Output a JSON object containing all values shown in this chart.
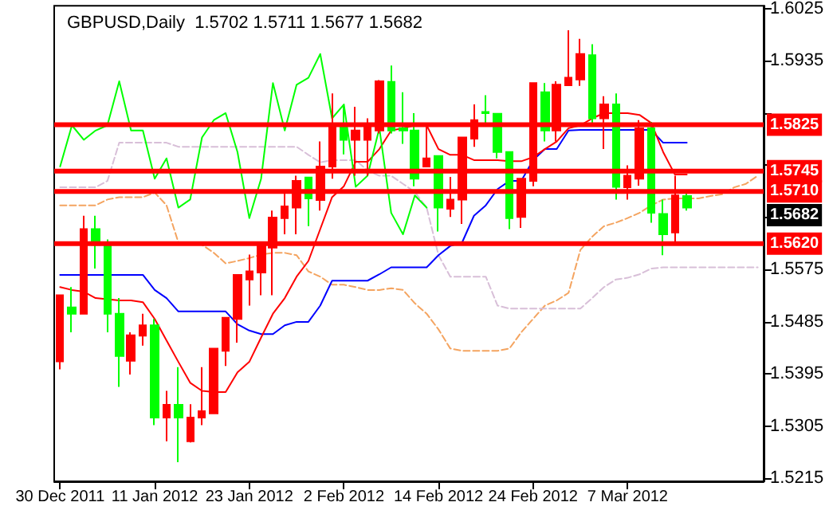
{
  "chart_data": {
    "type": "candlestick",
    "title": "GBPUSD,Daily  1.5702 1.5711 1.5677 1.5682",
    "categories": [
      "30 Dec 2011",
      null,
      null,
      null,
      null,
      null,
      null,
      null,
      "11 Jan 2012",
      null,
      null,
      null,
      null,
      null,
      null,
      null,
      "23 Jan 2012",
      null,
      null,
      null,
      null,
      null,
      null,
      null,
      "2 Feb 2012",
      null,
      null,
      null,
      null,
      null,
      null,
      null,
      "14 Feb 2012",
      null,
      null,
      null,
      null,
      null,
      null,
      null,
      "24 Feb 2012",
      null,
      null,
      null,
      null,
      null,
      null,
      null,
      "7 Mar 2012",
      null,
      null,
      null,
      null,
      null,
      null,
      null,
      null,
      null,
      null,
      null
    ],
    "ohlc": [
      [
        1.5417,
        1.5531,
        1.5403,
        1.5531
      ],
      [
        1.551,
        1.5545,
        1.5467,
        1.5499
      ],
      [
        1.5499,
        1.5668,
        1.5499,
        1.5645
      ],
      [
        1.5645,
        1.5668,
        1.5577,
        1.5618
      ],
      [
        1.5618,
        1.5627,
        1.5467,
        1.5499
      ],
      [
        1.5499,
        1.5526,
        1.5373,
        1.5426
      ],
      [
        1.5418,
        1.5467,
        1.5394,
        1.5462
      ],
      [
        1.5461,
        1.5499,
        1.5444,
        1.5479
      ],
      [
        1.5479,
        1.549,
        1.5307,
        1.532
      ],
      [
        1.532,
        1.5366,
        1.5279,
        1.5342
      ],
      [
        1.5342,
        1.5407,
        1.5243,
        1.532
      ],
      [
        1.5279,
        1.5343,
        1.5277,
        1.532
      ],
      [
        1.532,
        1.5407,
        1.5307,
        1.5331
      ],
      [
        1.5327,
        1.5439,
        1.5327,
        1.5439
      ],
      [
        1.5435,
        1.5492,
        1.5409,
        1.5492
      ],
      [
        1.549,
        1.5566,
        1.5449,
        1.5566
      ],
      [
        1.5558,
        1.5601,
        1.5513,
        1.5572
      ],
      [
        1.557,
        1.5616,
        1.5531,
        1.5616
      ],
      [
        1.5613,
        1.5677,
        1.5531,
        1.5665
      ],
      [
        1.5664,
        1.5709,
        1.5636,
        1.5684
      ],
      [
        1.5682,
        1.5737,
        1.5636,
        1.5728
      ],
      [
        1.5734,
        1.5734,
        1.565,
        1.5698
      ],
      [
        1.5695,
        1.5796,
        1.5677,
        1.5753
      ],
      [
        1.5753,
        1.5879,
        1.5732,
        1.5824
      ],
      [
        1.5824,
        1.586,
        1.5774,
        1.5799
      ],
      [
        1.5799,
        1.5856,
        1.5737,
        1.5815
      ],
      [
        1.5799,
        1.5836,
        1.5737,
        1.5824
      ],
      [
        1.5815,
        1.5902,
        1.581,
        1.59
      ],
      [
        1.5899,
        1.5927,
        1.581,
        1.5815
      ],
      [
        1.5819,
        1.5881,
        1.5792,
        1.5815
      ],
      [
        1.5815,
        1.5845,
        1.5719,
        1.5732
      ],
      [
        1.5753,
        1.5824,
        1.5753,
        1.5767
      ],
      [
        1.5771,
        1.5771,
        1.5641,
        1.5682
      ],
      [
        1.568,
        1.5735,
        1.5666,
        1.5696
      ],
      [
        1.5696,
        1.5803,
        1.5654,
        1.5803
      ],
      [
        1.5801,
        1.586,
        1.5787,
        1.5833
      ],
      [
        1.5847,
        1.5876,
        1.5824,
        1.5845
      ],
      [
        1.5844,
        1.5844,
        1.5767,
        1.5778
      ],
      [
        1.5778,
        1.5778,
        1.5645,
        1.5664
      ],
      [
        1.5666,
        1.5732,
        1.5647,
        1.5732
      ],
      [
        1.5728,
        1.5897,
        1.5719,
        1.5897
      ],
      [
        1.5881,
        1.5897,
        1.5796,
        1.5815
      ],
      [
        1.5815,
        1.59,
        1.5796,
        1.5894
      ],
      [
        1.5893,
        1.5988,
        1.5893,
        1.5906
      ],
      [
        1.5903,
        1.5973,
        1.5892,
        1.5947
      ],
      [
        1.5945,
        1.5964,
        1.5824,
        1.5836
      ],
      [
        1.5836,
        1.5874,
        1.5783,
        1.586
      ],
      [
        1.586,
        1.5879,
        1.5696,
        1.5718
      ],
      [
        1.5717,
        1.5755,
        1.5696,
        1.5737
      ],
      [
        1.5732,
        1.5833,
        1.572,
        1.5819
      ],
      [
        1.5819,
        1.583,
        1.5656,
        1.5673
      ],
      [
        1.5671,
        1.5696,
        1.56,
        1.5636
      ],
      [
        1.5639,
        1.5737,
        1.5618,
        1.5703
      ],
      [
        1.5702,
        1.5711,
        1.5677,
        1.5682
      ],
      null,
      null,
      null,
      null,
      null,
      null
    ],
    "colors": [
      "#ff0000",
      "#00ff00",
      "#ff0000",
      "#00ff00",
      "#00ff00",
      "#00ff00",
      "#ff0000",
      "#ff0000",
      "#00ff00",
      "#ff0000",
      "#00ff00",
      "#ff0000",
      "#ff0000",
      "#ff0000",
      "#ff0000",
      "#ff0000",
      "#ff0000",
      "#ff0000",
      "#ff0000",
      "#ff0000",
      "#ff0000",
      "#00ff00",
      "#ff0000",
      "#ff0000",
      "#00ff00",
      "#ff0000",
      "#ff0000",
      "#ff0000",
      "#00ff00",
      "#00ff00",
      "#00ff00",
      "#ff0000",
      "#00ff00",
      "#ff0000",
      "#ff0000",
      "#ff0000",
      "#00ff00",
      "#00ff00",
      "#00ff00",
      "#ff0000",
      "#ff0000",
      "#00ff00",
      "#ff0000",
      "#ff0000",
      "#ff0000",
      "#00ff00",
      "#ff0000",
      "#00ff00",
      "#ff0000",
      "#ff0000",
      "#00ff00",
      "#00ff00",
      "#ff0000",
      "#00ff00",
      null,
      null,
      null,
      null,
      null,
      null
    ],
    "series": [
      {
        "type": "line",
        "color": "#f4a460",
        "line_style": "dashed",
        "values": [
          1.5686,
          1.5686,
          1.5686,
          1.5686,
          1.5696,
          1.57,
          1.57,
          1.57,
          1.5708,
          1.5686,
          1.5622,
          1.562,
          1.5618,
          1.5604,
          1.5586,
          1.559,
          1.5595,
          1.5601,
          1.5604,
          1.5604,
          1.56,
          1.5572,
          1.5563,
          1.5549,
          1.5549,
          1.5545,
          1.554,
          1.554,
          1.5543,
          1.554,
          1.5517,
          1.5499,
          1.5472,
          1.5439,
          1.5435,
          1.5435,
          1.5435,
          1.5435,
          1.5439,
          1.5467,
          1.549,
          1.5513,
          1.5522,
          1.5535,
          1.5609,
          1.5632,
          1.565,
          1.5656,
          1.5664,
          1.5673,
          1.5686,
          1.5696,
          1.5698,
          1.5698,
          1.5698,
          1.5702,
          1.5705,
          1.5717,
          1.5723,
          1.5737
        ]
      },
      {
        "type": "line",
        "color": "#d8bfd8",
        "line_style": "dashed",
        "values": [
          1.5717,
          1.5717,
          1.5717,
          1.5717,
          1.5728,
          1.5794,
          1.5794,
          1.5794,
          1.5794,
          1.5794,
          1.5787,
          1.5787,
          1.5787,
          1.5787,
          1.5787,
          1.5787,
          1.5787,
          1.5787,
          1.5787,
          1.5787,
          1.5787,
          1.5773,
          1.576,
          1.5764,
          1.5764,
          1.5764,
          1.5746,
          1.5737,
          1.5737,
          1.5723,
          1.5709,
          1.5682,
          1.56,
          1.5563,
          1.5563,
          1.5563,
          1.5563,
          1.5513,
          1.5508,
          1.5508,
          1.5508,
          1.5508,
          1.5508,
          1.5508,
          1.5508,
          1.5526,
          1.5545,
          1.5558,
          1.5561,
          1.5567,
          1.5577,
          1.5579,
          1.5579,
          1.5579,
          1.5579,
          1.5579,
          1.5579,
          1.5579,
          1.5579,
          1.5579
        ]
      },
      {
        "type": "line",
        "color": "#0000ff",
        "line_style": "solid",
        "values": [
          1.5566,
          1.5566,
          1.5566,
          1.5566,
          1.5566,
          1.5566,
          1.5566,
          1.5566,
          1.554,
          1.5526,
          1.5503,
          1.5503,
          1.5503,
          1.5503,
          1.5503,
          1.5481,
          1.547,
          1.5464,
          1.5464,
          1.5479,
          1.5485,
          1.5485,
          1.5513,
          1.5556,
          1.5556,
          1.5556,
          1.5556,
          1.5567,
          1.5579,
          1.5579,
          1.5579,
          1.5579,
          1.56,
          1.5616,
          1.5622,
          1.5668,
          1.5686,
          1.5714,
          1.5728,
          1.5728,
          1.5764,
          1.5783,
          1.5783,
          1.5815,
          1.5816,
          1.5816,
          1.5816,
          1.5816,
          1.5816,
          1.5816,
          1.5816,
          1.5794,
          1.5794,
          1.5794,
          null,
          null,
          null,
          null,
          null,
          null
        ]
      },
      {
        "type": "line",
        "color": "#ff0000",
        "line_style": "solid",
        "values": [
          1.5545,
          1.554,
          1.5537,
          1.5526,
          1.5524,
          1.5522,
          1.5522,
          1.5519,
          1.549,
          1.5453,
          1.5416,
          1.538,
          1.5366,
          1.5364,
          1.5364,
          1.5398,
          1.5416,
          1.5458,
          1.5499,
          1.5526,
          1.5563,
          1.559,
          1.5645,
          1.57,
          1.5719,
          1.5761,
          1.5761,
          1.5783,
          1.5815,
          1.5819,
          1.5824,
          1.5824,
          1.5783,
          1.5773,
          1.5773,
          1.5764,
          1.5764,
          1.5764,
          1.5762,
          1.5762,
          1.5769,
          1.5783,
          1.5796,
          1.5819,
          1.5824,
          1.5836,
          1.5845,
          1.5845,
          1.5845,
          1.5842,
          1.5828,
          1.5778,
          1.5739,
          1.5739,
          null,
          null,
          null,
          null,
          null,
          null
        ]
      },
      {
        "type": "line",
        "color": "#00ff00",
        "line_style": "solid",
        "values": [
          1.5753,
          1.5824,
          1.5799,
          1.5815,
          1.5824,
          1.59,
          1.5815,
          1.5815,
          1.5732,
          1.5767,
          1.5682,
          1.5696,
          1.5803,
          1.5833,
          1.5845,
          1.5778,
          1.5664,
          1.5732,
          1.5897,
          1.5815,
          1.5894,
          1.5906,
          1.5947,
          1.5836,
          1.586,
          1.5718,
          1.5737,
          1.5819,
          1.5673,
          1.5636,
          1.5703,
          1.5682,
          null,
          null,
          null,
          null,
          null,
          null,
          null,
          null,
          null,
          null,
          null,
          null,
          null,
          null,
          null,
          null,
          null,
          null,
          null,
          null,
          null,
          null,
          null,
          null,
          null,
          null,
          null,
          null
        ]
      }
    ],
    "ylim": [
      1.521,
      1.603
    ],
    "yticks": [
      1.5215,
      1.5305,
      1.5395,
      1.5485,
      1.5575,
      {
        "value": 1.5665,
        "label": null
      },
      {
        "value": 1.5755,
        "label": null
      },
      {
        "value": 1.5845,
        "label": null
      },
      1.5935,
      1.6025
    ],
    "ref_lines": [
      {
        "axis": "y",
        "value": 1.5825,
        "label": "1.5825",
        "color": "#ff0000"
      },
      {
        "axis": "y",
        "value": 1.5745,
        "label": "1.5745",
        "color": "#ff0000"
      },
      {
        "axis": "y",
        "value": 1.571,
        "label": "1.5710",
        "color": "#ff0000"
      },
      {
        "axis": "y",
        "value": 1.562,
        "label": "1.5620",
        "color": "#ff0000"
      }
    ],
    "annotations": [
      "1.5682"
    ],
    "grid": false,
    "marker": "none"
  }
}
